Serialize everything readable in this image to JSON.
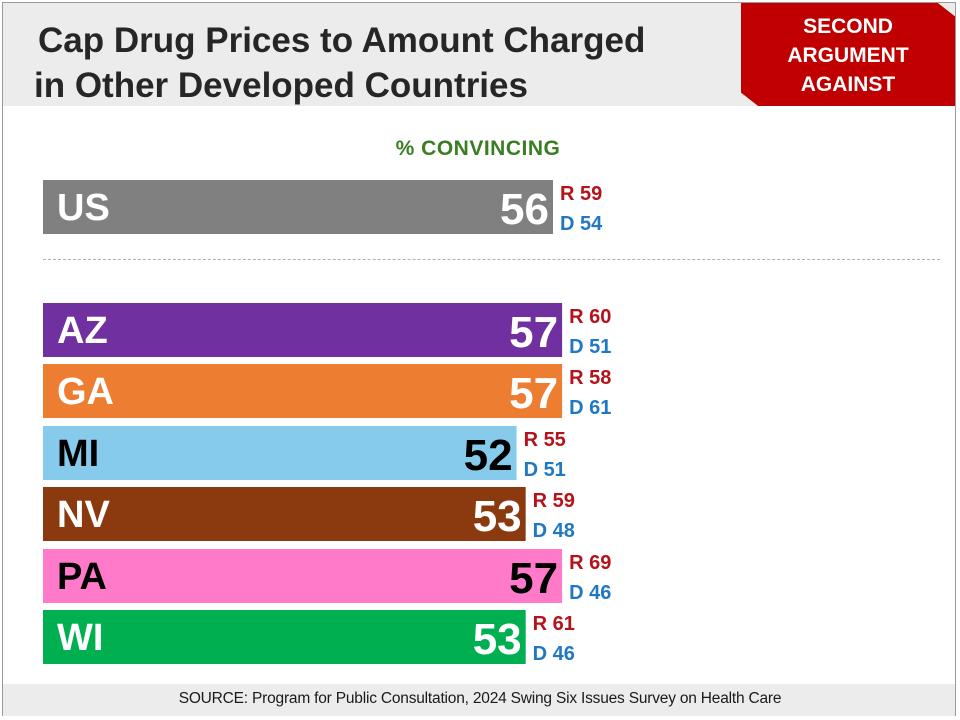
{
  "header": {
    "title_line1": "Cap Drug Prices to Amount Charged",
    "title_line2": "in Other Developed Countries",
    "badge": [
      "SECOND",
      "ARGUMENT",
      "AGAINST"
    ]
  },
  "footer": {
    "source": "SOURCE: Program for Public Consultation, 2024 Swing Six Issues Survey on Health Care"
  },
  "colors": {
    "republican": "#b5121b",
    "democrat": "#1f78c1",
    "us": "#808080",
    "AZ": "#7030a0",
    "GA": "#ed7d31",
    "MI": "#87cbec",
    "NV": "#8b3a10",
    "PA": "#ff7ac8",
    "WI": "#00b050"
  },
  "chart_data": {
    "type": "bar",
    "orientation": "horizontal",
    "title": "% CONVINCING",
    "xlim": [
      0,
      100
    ],
    "grid": false,
    "categories": [
      "US",
      "AZ",
      "GA",
      "MI",
      "NV",
      "PA",
      "WI"
    ],
    "series": [
      {
        "name": "",
        "values": [
          56,
          57,
          57,
          52,
          53,
          57,
          53
        ]
      },
      {
        "name": "R",
        "values": [
          59,
          60,
          58,
          55,
          59,
          69,
          61
        ]
      },
      {
        "name": "D",
        "values": [
          54,
          51,
          61,
          51,
          48,
          46,
          46
        ]
      }
    ],
    "label_color": [
      "light",
      "light",
      "light",
      "dark",
      "light",
      "dark",
      "light"
    ]
  }
}
